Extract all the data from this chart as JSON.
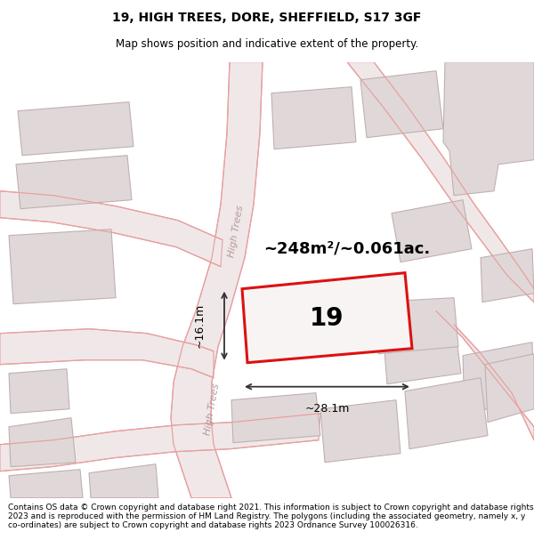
{
  "title": "19, HIGH TREES, DORE, SHEFFIELD, S17 3GF",
  "subtitle": "Map shows position and indicative extent of the property.",
  "footer": "Contains OS data © Crown copyright and database right 2021. This information is subject to Crown copyright and database rights 2023 and is reproduced with the permission of HM Land Registry. The polygons (including the associated geometry, namely x, y co-ordinates) are subject to Crown copyright and database rights 2023 Ordnance Survey 100026316.",
  "map_bg": "#f2eeee",
  "plot_fill": "#f8f4f4",
  "plot_edge": "#dd1111",
  "road_color": "#e8a0a0",
  "road_fill": "#f0e8e8",
  "building_fill": "#e0d8d8",
  "building_edge": "#c0b0b0",
  "label_19": "19",
  "area_text": "~248m²/~0.061ac.",
  "dim_width": "~28.1m",
  "dim_height": "~16.1m",
  "road_label": "High Trees",
  "fig_width": 6.0,
  "fig_height": 6.25,
  "title_fontsize": 10,
  "subtitle_fontsize": 8.5,
  "footer_fontsize": 6.5
}
